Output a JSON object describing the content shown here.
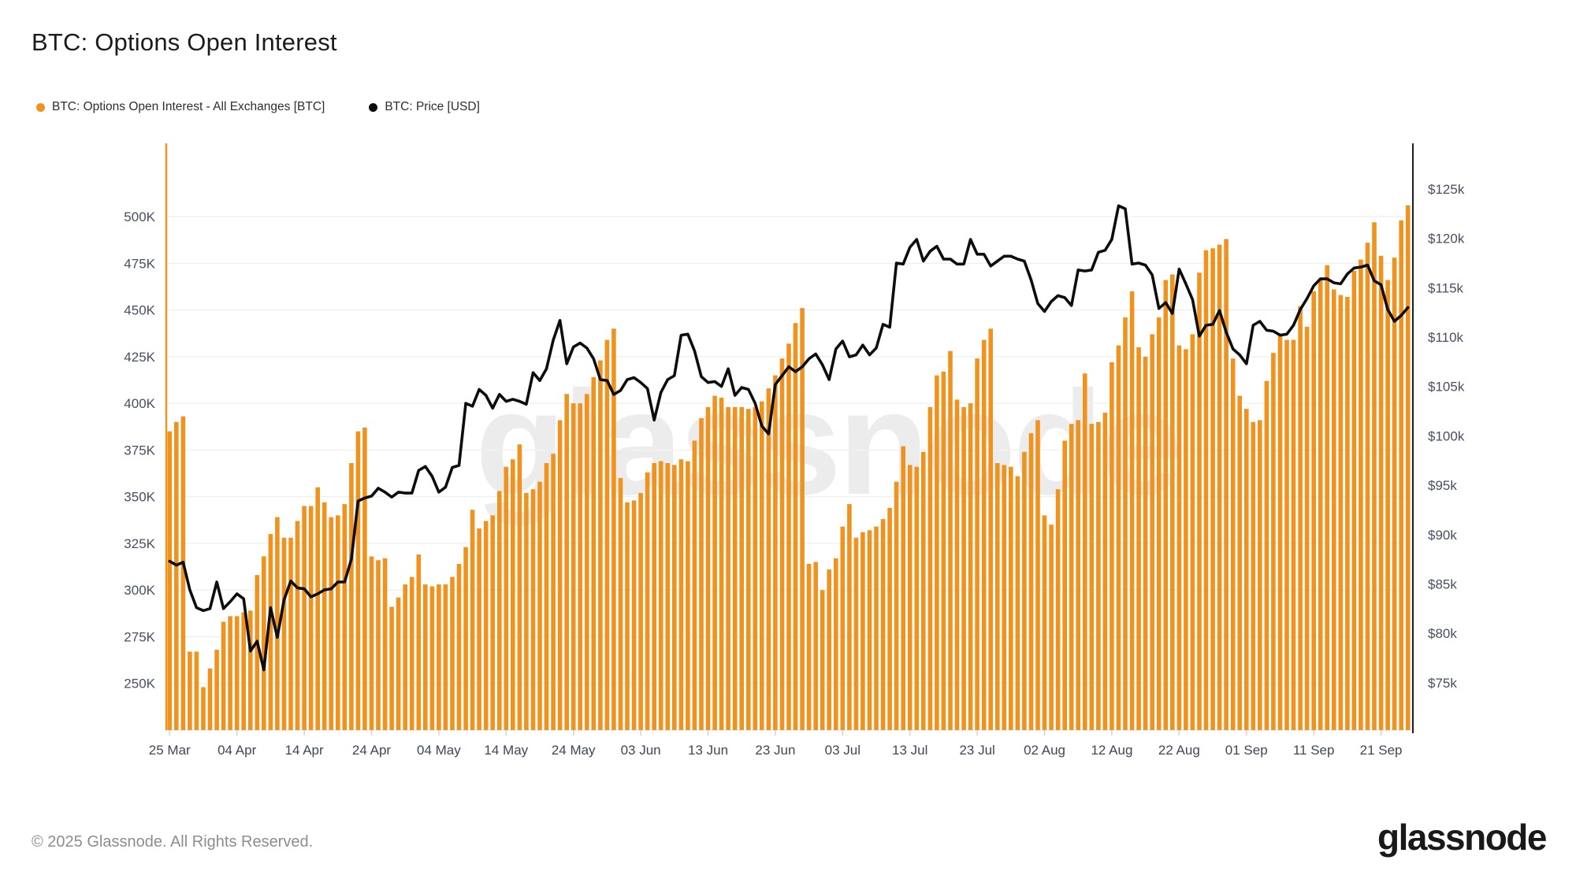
{
  "header": {
    "title": "BTC: Options Open Interest"
  },
  "legend": [
    {
      "label": "BTC: Options Open Interest - All Exchanges [BTC]",
      "color": "#F0921E",
      "icon": "orange-dot"
    },
    {
      "label": "BTC: Price [USD]",
      "color": "#0d0d0d",
      "icon": "black-dot"
    }
  ],
  "watermark": {
    "text": "glassnode"
  },
  "footer": {
    "copyright": "© 2025 Glassnode. All Rights Reserved.",
    "logo_text": "glassnode"
  },
  "colors": {
    "bar": "#F0921E",
    "line": "#0d0d0d",
    "grid": "#f0f0f0",
    "baseline": "#e9e9e9",
    "left_axis_line": "#F0921E",
    "right_axis_line": "#1a1d22",
    "tick": "#cfcfcf",
    "background": "#ffffff"
  },
  "chart_data": {
    "type": "bar+line",
    "title": "BTC: Options Open Interest",
    "frequency": "daily",
    "date_range": {
      "start": "2025-03-25",
      "end": "2025-09-25"
    },
    "x_ticks": [
      {
        "label": "25 Mar",
        "day_index": 0
      },
      {
        "label": "04 Apr",
        "day_index": 10
      },
      {
        "label": "14 Apr",
        "day_index": 20
      },
      {
        "label": "24 Apr",
        "day_index": 30
      },
      {
        "label": "04 May",
        "day_index": 40
      },
      {
        "label": "14 May",
        "day_index": 50
      },
      {
        "label": "24 May",
        "day_index": 60
      },
      {
        "label": "03 Jun",
        "day_index": 70
      },
      {
        "label": "13 Jun",
        "day_index": 80
      },
      {
        "label": "23 Jun",
        "day_index": 90
      },
      {
        "label": "03 Jul",
        "day_index": 100
      },
      {
        "label": "13 Jul",
        "day_index": 110
      },
      {
        "label": "23 Jul",
        "day_index": 120
      },
      {
        "label": "02 Aug",
        "day_index": 130
      },
      {
        "label": "12 Aug",
        "day_index": 140
      },
      {
        "label": "22 Aug",
        "day_index": 150
      },
      {
        "label": "01 Sep",
        "day_index": 160
      },
      {
        "label": "11 Sep",
        "day_index": 170
      },
      {
        "label": "21 Sep",
        "day_index": 180
      }
    ],
    "left_axis": {
      "unit": "BTC (thousands)",
      "min": 225,
      "max": 519,
      "tick_values": [
        250,
        275,
        300,
        325,
        350,
        375,
        400,
        425,
        450,
        475,
        500
      ],
      "tick_labels": [
        "250K",
        "275K",
        "300K",
        "325K",
        "350K",
        "375K",
        "400K",
        "425K",
        "450K",
        "475K",
        "500K"
      ]
    },
    "right_axis": {
      "unit": "USD (thousands)",
      "min": 70.2,
      "max": 125.8,
      "tick_values": [
        75,
        80,
        85,
        90,
        95,
        100,
        105,
        110,
        115,
        120,
        125
      ],
      "tick_labels": [
        "$75k",
        "$80k",
        "$85k",
        "$90k",
        "$95k",
        "$100k",
        "$105k",
        "$110k",
        "$115k",
        "$120k",
        "$125k"
      ]
    },
    "series": [
      {
        "name": "BTC: Options Open Interest - All Exchanges [BTC]",
        "type": "bar",
        "axis": "left",
        "color": "#F0921E",
        "unit": "K BTC",
        "values": [
          385,
          390,
          393,
          267,
          267,
          248,
          258,
          268,
          283,
          286,
          286,
          288,
          289,
          308,
          318,
          330,
          339,
          328,
          328,
          337,
          345,
          345,
          355,
          347,
          339,
          340,
          346,
          368,
          385,
          387,
          318,
          316,
          317,
          291,
          296,
          303,
          307,
          319,
          303,
          302,
          303,
          303,
          307,
          314,
          323,
          343,
          333,
          337,
          340,
          353,
          366,
          370,
          378,
          352,
          354,
          358,
          368,
          373,
          391,
          405,
          400,
          400,
          405,
          414,
          423,
          434,
          440,
          360,
          347,
          348,
          352,
          363,
          368,
          369,
          368,
          367,
          370,
          369,
          380,
          392,
          398,
          404,
          403,
          398,
          398,
          398,
          397,
          398,
          401,
          408,
          415,
          424,
          432,
          443,
          451,
          314,
          315,
          300,
          311,
          317,
          334,
          346,
          328,
          331,
          332,
          334,
          338,
          344,
          358,
          377,
          367,
          366,
          374,
          398,
          415,
          417,
          428,
          402,
          398,
          400,
          424,
          434,
          440,
          368,
          367,
          366,
          361,
          374,
          384,
          391,
          340,
          335,
          354,
          380,
          389,
          391,
          416,
          389,
          390,
          395,
          422,
          431,
          446,
          460,
          430,
          425,
          437,
          446,
          466,
          469,
          431,
          429,
          437,
          470,
          482,
          483,
          485,
          488,
          424,
          404,
          397,
          390,
          391,
          412,
          427,
          436,
          434,
          434,
          452,
          441,
          460,
          467,
          474,
          461,
          458,
          457,
          471,
          477,
          486,
          497,
          479,
          466,
          478,
          498,
          506
        ]
      },
      {
        "name": "BTC: Price [USD]",
        "type": "line",
        "axis": "right",
        "color": "#0d0d0d",
        "unit": "$k",
        "values": [
          87.3,
          86.9,
          87.2,
          84.4,
          82.6,
          82.3,
          82.5,
          85.2,
          82.5,
          83.2,
          84.0,
          83.5,
          78.2,
          79.2,
          76.3,
          82.6,
          79.6,
          83.4,
          85.3,
          84.6,
          84.5,
          83.7,
          84.0,
          84.4,
          84.5,
          85.2,
          85.2,
          87.5,
          93.4,
          93.7,
          93.9,
          94.7,
          94.3,
          93.8,
          94.3,
          94.2,
          94.2,
          96.5,
          96.9,
          95.9,
          94.3,
          94.8,
          96.8,
          97.0,
          103.3,
          103.0,
          104.7,
          104.1,
          102.8,
          104.2,
          103.5,
          103.7,
          103.5,
          103.2,
          106.4,
          105.6,
          106.8,
          109.7,
          111.7,
          107.3,
          109.0,
          109.4,
          108.9,
          107.8,
          105.7,
          105.6,
          104.2,
          104.6,
          105.7,
          105.9,
          105.4,
          104.8,
          101.6,
          104.4,
          105.7,
          106.1,
          110.2,
          110.3,
          108.6,
          106.0,
          105.4,
          105.5,
          105.0,
          106.8,
          104.1,
          104.9,
          104.7,
          103.3,
          101.0,
          100.2,
          105.2,
          106.1,
          107.0,
          106.5,
          107.0,
          107.8,
          108.3,
          107.2,
          105.7,
          108.8,
          109.6,
          108.0,
          108.2,
          109.2,
          108.2,
          108.9,
          111.3,
          111.0,
          117.5,
          117.4,
          119.1,
          119.9,
          117.7,
          118.7,
          119.2,
          117.9,
          117.9,
          117.4,
          117.4,
          119.9,
          118.4,
          118.4,
          117.2,
          117.7,
          118.2,
          118.2,
          117.9,
          117.7,
          115.8,
          113.4,
          112.6,
          113.6,
          114.2,
          114.0,
          113.2,
          116.8,
          116.7,
          116.8,
          118.6,
          118.8,
          119.9,
          123.3,
          123.0,
          117.4,
          117.5,
          117.3,
          116.3,
          112.9,
          113.5,
          112.4,
          116.9,
          115.4,
          113.8,
          110.1,
          111.2,
          111.3,
          112.7,
          110.5,
          108.8,
          108.2,
          107.3,
          111.2,
          111.6,
          110.7,
          110.6,
          110.2,
          110.3,
          111.2,
          112.8,
          113.9,
          115.2,
          115.9,
          115.9,
          115.5,
          115.4,
          116.4,
          117.0,
          117.1,
          117.3,
          115.7,
          115.3,
          112.8,
          111.6,
          112.2,
          113.0
        ]
      }
    ],
    "legend_position": "top-left",
    "grid": "horizontal-only"
  }
}
